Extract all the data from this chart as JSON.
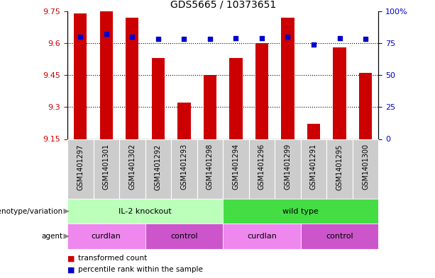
{
  "title": "GDS5665 / 10373651",
  "samples": [
    "GSM1401297",
    "GSM1401301",
    "GSM1401302",
    "GSM1401292",
    "GSM1401293",
    "GSM1401298",
    "GSM1401294",
    "GSM1401296",
    "GSM1401299",
    "GSM1401291",
    "GSM1401295",
    "GSM1401300"
  ],
  "transformed_count": [
    9.74,
    9.75,
    9.72,
    9.53,
    9.32,
    9.45,
    9.53,
    9.6,
    9.72,
    9.22,
    9.58,
    9.46
  ],
  "percentile_rank": [
    80,
    82,
    80,
    78,
    78,
    78,
    79,
    79,
    80,
    74,
    79,
    78
  ],
  "ymin": 9.15,
  "ymax": 9.75,
  "yticks": [
    9.15,
    9.3,
    9.45,
    9.6,
    9.75
  ],
  "y2ticks": [
    0,
    25,
    50,
    75,
    100
  ],
  "y2labels": [
    "0",
    "25",
    "50",
    "75",
    "100%"
  ],
  "bar_color": "#cc0000",
  "dot_color": "#0000cc",
  "gridline_values": [
    9.3,
    9.45,
    9.6
  ],
  "genotype_groups": [
    {
      "label": "IL-2 knockout",
      "start": 0,
      "end": 6,
      "color": "#bbffbb"
    },
    {
      "label": "wild type",
      "start": 6,
      "end": 12,
      "color": "#44dd44"
    }
  ],
  "agent_groups": [
    {
      "label": "curdlan",
      "start": 0,
      "end": 3,
      "color": "#ee88ee"
    },
    {
      "label": "control",
      "start": 3,
      "end": 6,
      "color": "#cc55cc"
    },
    {
      "label": "curdlan",
      "start": 6,
      "end": 9,
      "color": "#ee88ee"
    },
    {
      "label": "control",
      "start": 9,
      "end": 12,
      "color": "#cc55cc"
    }
  ],
  "legend_items": [
    {
      "label": "transformed count",
      "color": "#cc0000"
    },
    {
      "label": "percentile rank within the sample",
      "color": "#0000cc"
    }
  ],
  "sample_label_bg": "#cccccc",
  "bar_width": 0.5,
  "tick_fontsize": 8,
  "label_fontsize": 8,
  "sample_fontsize": 7
}
